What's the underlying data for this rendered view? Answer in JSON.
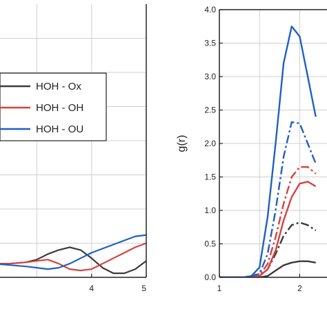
{
  "chart_data": [
    {
      "type": "line",
      "title": "",
      "xlabel": "",
      "ylabel": "",
      "xlim": [
        2.2,
        5
      ],
      "ylim": [
        0,
        2
      ],
      "x_ticks": [
        4,
        5
      ],
      "x_tick_labels": [
        "4",
        "5"
      ],
      "grid": true,
      "legend_placement": "left-middle",
      "series": [
        {
          "name": "HOH - Ox",
          "color": "#3a3a3a",
          "x": [
            2.2,
            2.5,
            2.8,
            3.0,
            3.2,
            3.4,
            3.6,
            3.8,
            4.0,
            4.2,
            4.4,
            4.6,
            4.8,
            5.0
          ],
          "y": [
            0.1,
            0.1,
            0.11,
            0.13,
            0.17,
            0.2,
            0.22,
            0.2,
            0.14,
            0.07,
            0.03,
            0.03,
            0.06,
            0.12
          ]
        },
        {
          "name": "HOH - OH",
          "color": "#d94040",
          "x": [
            2.2,
            2.5,
            2.8,
            3.0,
            3.2,
            3.4,
            3.6,
            3.8,
            4.0,
            4.2,
            4.4,
            4.6,
            4.8,
            5.0
          ],
          "y": [
            0.1,
            0.1,
            0.11,
            0.12,
            0.13,
            0.1,
            0.06,
            0.05,
            0.06,
            0.1,
            0.14,
            0.18,
            0.22,
            0.25
          ]
        },
        {
          "name": "HOH - OU",
          "color": "#1f5fc4",
          "x": [
            2.2,
            2.5,
            2.8,
            3.0,
            3.2,
            3.4,
            3.6,
            3.8,
            4.0,
            4.2,
            4.4,
            4.6,
            4.8,
            5.0
          ],
          "y": [
            0.1,
            0.09,
            0.08,
            0.07,
            0.06,
            0.07,
            0.1,
            0.14,
            0.18,
            0.21,
            0.24,
            0.27,
            0.3,
            0.31
          ]
        }
      ]
    },
    {
      "type": "line",
      "title": "",
      "xlabel": "",
      "ylabel": "g(r)",
      "xlim": [
        1,
        2.5
      ],
      "ylim": [
        0,
        4
      ],
      "x_ticks": [
        1,
        2
      ],
      "x_tick_labels": [
        "1",
        "2"
      ],
      "y_ticks": [
        0,
        0.5,
        1,
        1.5,
        2,
        2.5,
        3,
        3.5,
        4
      ],
      "y_tick_labels": [
        "0.0",
        "0.5",
        "1.0",
        "1.5",
        "2.0",
        "2.5",
        "3.0",
        "3.5",
        "4.0"
      ],
      "grid": true,
      "series": [
        {
          "style": "solid",
          "color": "#3a3a3a",
          "x": [
            1.0,
            1.3,
            1.5,
            1.6,
            1.7,
            1.8,
            1.9,
            2.0,
            2.1,
            2.2
          ],
          "y": [
            0,
            0,
            0,
            0.02,
            0.1,
            0.18,
            0.22,
            0.24,
            0.24,
            0.22
          ]
        },
        {
          "style": "dashdot",
          "color": "#3a3a3a",
          "x": [
            1.0,
            1.3,
            1.5,
            1.6,
            1.7,
            1.8,
            1.9,
            2.0,
            2.1,
            2.2
          ],
          "y": [
            0,
            0,
            0.02,
            0.12,
            0.35,
            0.62,
            0.78,
            0.82,
            0.78,
            0.7
          ]
        },
        {
          "style": "solid",
          "color": "#d94040",
          "x": [
            1.0,
            1.3,
            1.5,
            1.6,
            1.7,
            1.8,
            1.9,
            2.0,
            2.1,
            2.2
          ],
          "y": [
            0,
            0,
            0.02,
            0.12,
            0.4,
            0.85,
            1.2,
            1.4,
            1.43,
            1.36
          ]
        },
        {
          "style": "dashdot",
          "color": "#d94040",
          "x": [
            1.0,
            1.3,
            1.5,
            1.6,
            1.7,
            1.8,
            1.9,
            2.0,
            2.1,
            2.2
          ],
          "y": [
            0,
            0,
            0.03,
            0.2,
            0.6,
            1.1,
            1.5,
            1.65,
            1.65,
            1.55
          ]
        },
        {
          "style": "dashdot",
          "color": "#1f5fc4",
          "x": [
            1.0,
            1.3,
            1.5,
            1.6,
            1.7,
            1.8,
            1.9,
            2.0,
            2.1,
            2.2
          ],
          "y": [
            0,
            0,
            0.05,
            0.35,
            1.0,
            1.8,
            2.32,
            2.3,
            2.0,
            1.7
          ]
        },
        {
          "style": "solid",
          "color": "#1f5fc4",
          "x": [
            1.0,
            1.3,
            1.4,
            1.5,
            1.6,
            1.7,
            1.8,
            1.9,
            2.0,
            2.1,
            2.2
          ],
          "y": [
            0,
            0,
            0.02,
            0.15,
            0.9,
            2.0,
            3.2,
            3.75,
            3.6,
            3.0,
            2.4
          ]
        }
      ]
    }
  ]
}
